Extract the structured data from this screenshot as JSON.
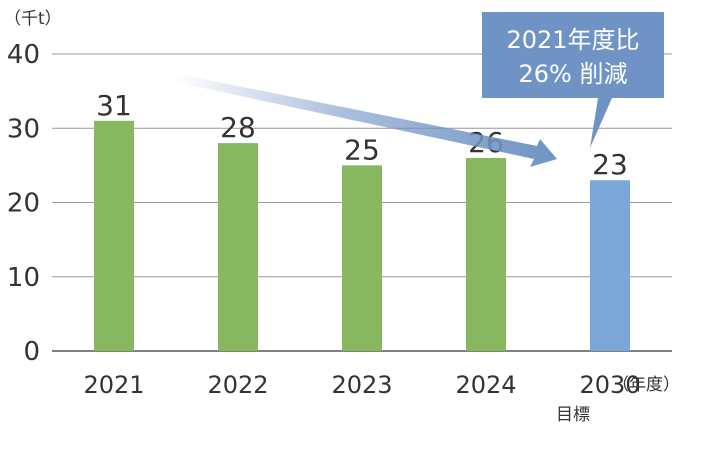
{
  "chart_data": {
    "type": "bar",
    "unit_label": "（千t）",
    "categories": [
      "2021",
      "2022",
      "2023",
      "2024",
      "2030"
    ],
    "values": [
      31,
      28,
      25,
      26,
      23
    ],
    "target_note": "目標",
    "year_suffix": "（年度）",
    "ylim": [
      0,
      40
    ],
    "yticks": [
      0,
      10,
      20,
      30,
      40
    ],
    "grid": true,
    "colors": {
      "actual": "#87b860",
      "target": "#7ba7d8",
      "callout": "#6f93c4",
      "grid": "#999999",
      "axis": "#555555"
    },
    "callout": {
      "line1": "2021年度比",
      "line2": "26% 削減"
    }
  }
}
